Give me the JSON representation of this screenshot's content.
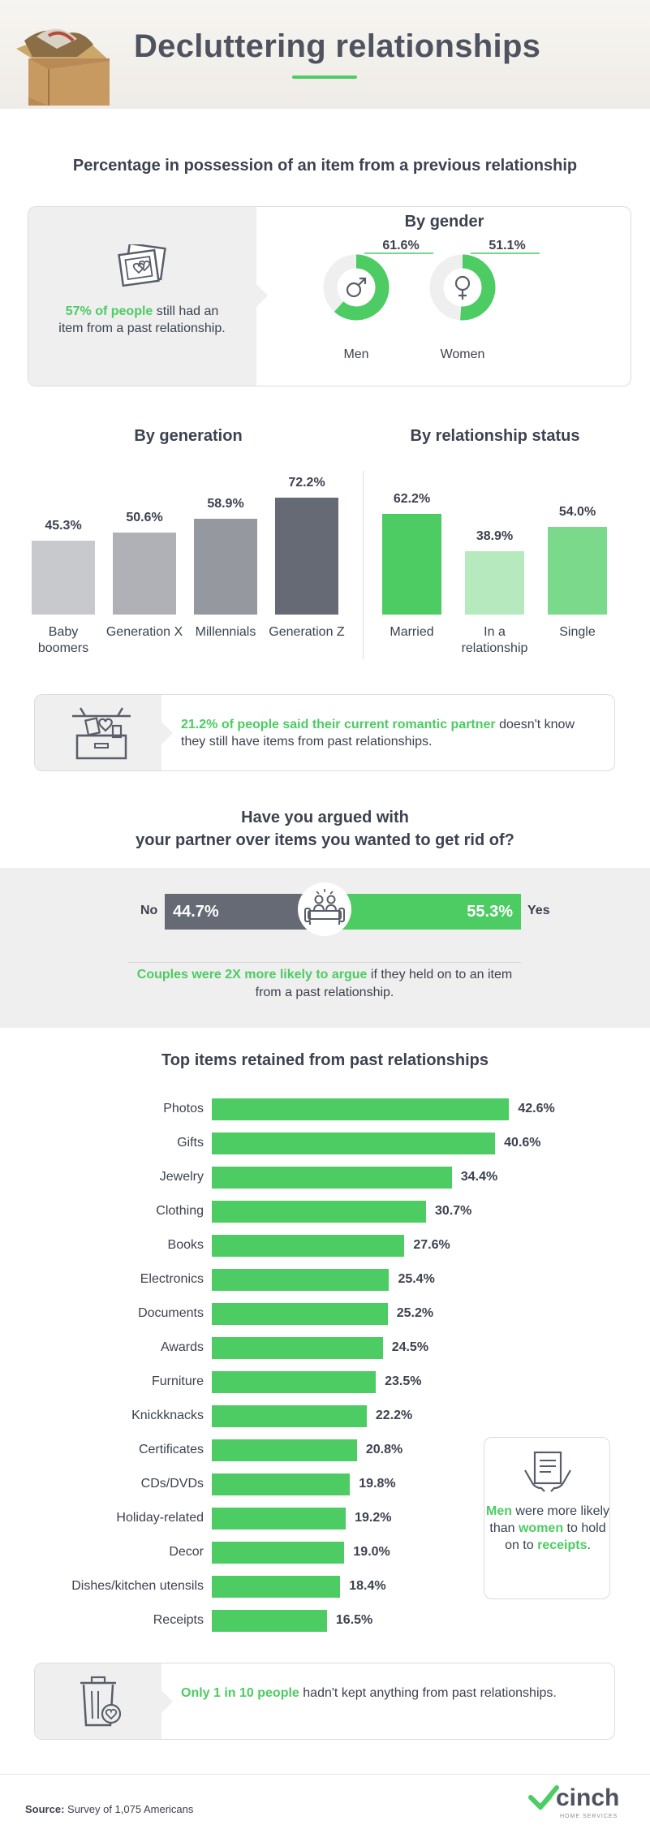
{
  "header": {
    "title": "Decluttering relationships"
  },
  "section1": {
    "title": "Percentage in possession of an item from a previous relationship",
    "stat_highlight": "57% of people",
    "stat_rest": " still had an item from a past relationship.",
    "by_gender_title": "By gender"
  },
  "generation_title": "By generation",
  "status_title": "By relationship status",
  "partner_note": {
    "highlight": "21.2% of people said their current romantic partner",
    "rest": " doesn't know they still have items from past relationships."
  },
  "argue": {
    "title_line1": "Have you argued with",
    "title_line2": "your partner over items you wanted to get rid of?",
    "no_label": "No",
    "yes_label": "Yes",
    "no_value": "44.7%",
    "yes_value": "55.3%",
    "no_fraction": 0.447,
    "yes_fraction": 0.553,
    "note_highlight": "Couples were 2X more likely to argue",
    "note_rest": " if they held on to an item from a past relationship."
  },
  "items_title": "Top items retained from past relationships",
  "side_card": {
    "t1": "Men",
    "t2": " were more likely than ",
    "t3": "women",
    "t4": " to hold on to ",
    "t5": "receipts",
    "t6": "."
  },
  "bottom_note": {
    "highlight": "Only 1 in 10 people",
    "rest": " hadn't kept anything from past relationships."
  },
  "source": {
    "label": "Source:",
    "text": " Survey of 1,075 Americans"
  },
  "logo": {
    "word": "cinch",
    "sub": "HOME SERVICES"
  },
  "colors": {
    "green": "#4ccc62",
    "dark_grey": "#666a75",
    "light_green": "#b6e9bd",
    "mid_green": "#7ad98a"
  },
  "chart_data": [
    {
      "type": "pie",
      "title": "By gender",
      "categories": [
        "Men",
        "Women"
      ],
      "values": [
        61.6,
        51.1
      ],
      "labels": [
        "61.6%",
        "51.1%"
      ],
      "icons": [
        "male-symbol-icon",
        "female-symbol-icon"
      ]
    },
    {
      "type": "bar",
      "title": "By generation",
      "categories": [
        "Baby boomers",
        "Generation X",
        "Millennials",
        "Generation Z"
      ],
      "values": [
        45.3,
        50.6,
        58.9,
        72.2
      ],
      "labels": [
        "45.3%",
        "50.6%",
        "58.9%",
        "72.2%"
      ],
      "colors": [
        "#c8c9cd",
        "#afb1b6",
        "#95989f",
        "#666a75"
      ]
    },
    {
      "type": "bar",
      "title": "By relationship status",
      "categories": [
        "Married",
        "In a relationship",
        "Single"
      ],
      "values": [
        62.2,
        38.9,
        54.0
      ],
      "labels": [
        "62.2%",
        "38.9%",
        "54.0%"
      ],
      "colors": [
        "#4ccc62",
        "#b6e9bd",
        "#7ad98a"
      ]
    },
    {
      "type": "bar",
      "orientation": "horizontal",
      "title": "Top items retained from past relationships",
      "categories": [
        "Photos",
        "Gifts",
        "Jewelry",
        "Clothing",
        "Books",
        "Electronics",
        "Documents",
        "Awards",
        "Furniture",
        "Knickknacks",
        "Certificates",
        "CDs/DVDs",
        "Holiday-related",
        "Decor",
        "Dishes/kitchen utensils",
        "Receipts"
      ],
      "values": [
        42.6,
        40.6,
        34.4,
        30.7,
        27.6,
        25.4,
        25.2,
        24.5,
        23.5,
        22.2,
        20.8,
        19.8,
        19.2,
        19.0,
        18.4,
        16.5
      ],
      "labels": [
        "42.6%",
        "40.6%",
        "34.4%",
        "30.7%",
        "27.6%",
        "25.4%",
        "25.2%",
        "24.5%",
        "23.5%",
        "22.2%",
        "20.8%",
        "19.8%",
        "19.2%",
        "19.0%",
        "18.4%",
        "16.5%"
      ]
    }
  ]
}
